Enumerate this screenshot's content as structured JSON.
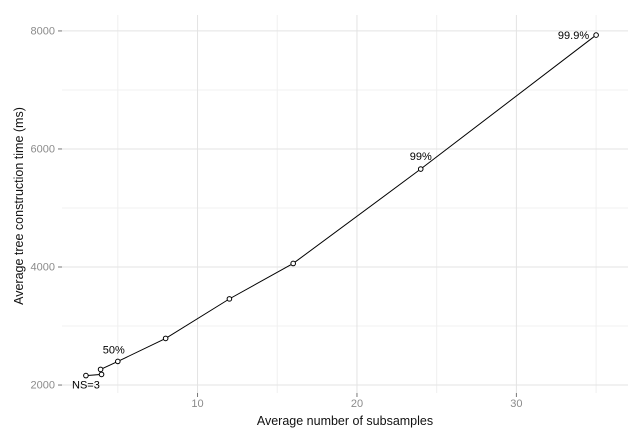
{
  "chart_data": {
    "type": "line",
    "title": "",
    "xlabel": "Average number of subsamples",
    "ylabel": "Average tree construction time (ms)",
    "xlim": [
      1.5,
      37.0
    ],
    "ylim": [
      1865,
      8270
    ],
    "x_major_ticks": [
      10,
      20,
      30
    ],
    "x_minor_gridlines": [
      5,
      15,
      25,
      35
    ],
    "y_major_ticks": [
      2000,
      4000,
      6000,
      8000
    ],
    "y_minor_gridlines": [
      3000,
      5000,
      7000
    ],
    "grid": "major-and-minor",
    "legend": "none",
    "marker": "open-circle",
    "series": [
      {
        "name": "average-tree-construction-time",
        "color": "#000000",
        "points": [
          {
            "x": 3.0,
            "y": 2160,
            "label": "NS=3",
            "label_anchor": "middle",
            "label_dx": 0,
            "label_dy": 13
          },
          {
            "x": 3.98,
            "y": 2180
          },
          {
            "x": 3.92,
            "y": 2265
          },
          {
            "x": 5.0,
            "y": 2400,
            "label": "50%",
            "label_anchor": "middle",
            "label_dx": -4,
            "label_dy": -8
          },
          {
            "x": 8.0,
            "y": 2790
          },
          {
            "x": 12.0,
            "y": 3460
          },
          {
            "x": 16.0,
            "y": 4060
          },
          {
            "x": 24.0,
            "y": 5660,
            "label": "99%",
            "label_anchor": "middle",
            "label_dx": 0,
            "label_dy": -9
          },
          {
            "x": 35.0,
            "y": 7930,
            "label": "99.9%",
            "label_anchor": "end",
            "label_dx": -7,
            "label_dy": 4
          }
        ]
      }
    ],
    "colors": {
      "background": "#ffffff",
      "grid_major": "#e3e3e3",
      "grid_minor": "#f0f0f0",
      "axis_text": "#8b8b8b",
      "axis_tick": "#777777",
      "axis_title": "#111111",
      "series_line": "#000000",
      "marker_fill": "#ffffff",
      "annotation": "#000000"
    }
  }
}
